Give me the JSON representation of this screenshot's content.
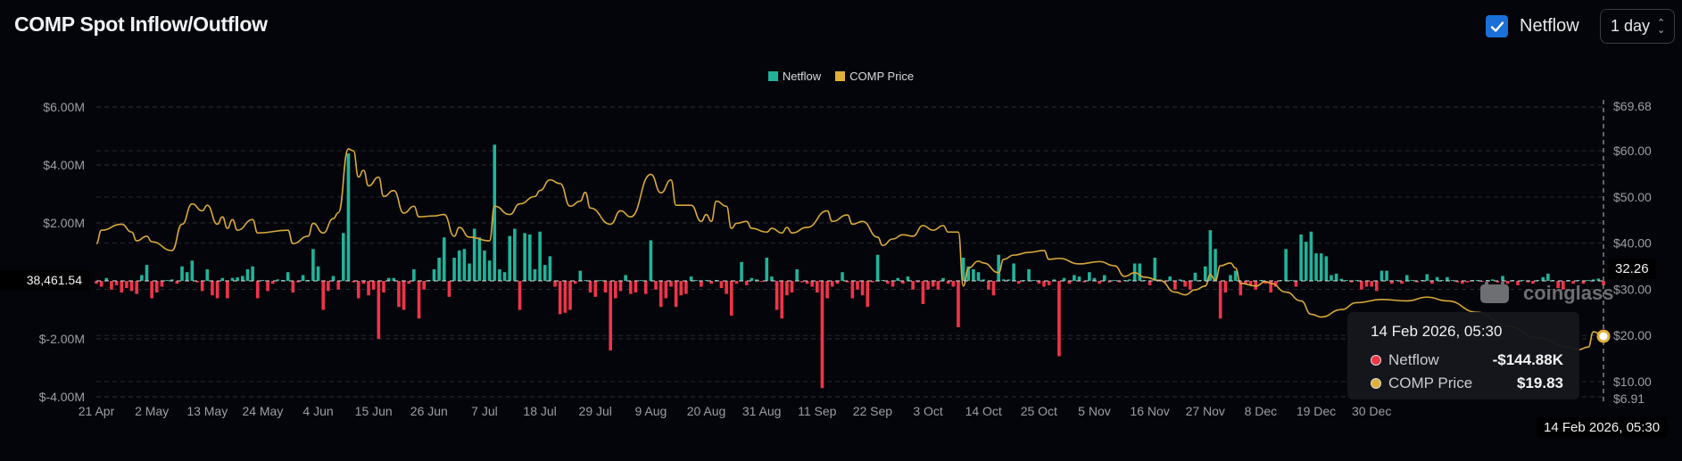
{
  "header": {
    "title": "COMP Spot Inflow/Outflow",
    "netflow_toggle": {
      "label": "Netflow",
      "checked": true
    },
    "interval_select": {
      "value": "1 day"
    }
  },
  "legend": [
    {
      "label": "Netflow",
      "color": "#20b39a"
    },
    {
      "label": "COMP Price",
      "color": "#e0b038"
    }
  ],
  "colors": {
    "inflow": "#20b39a",
    "outflow": "#f0344a",
    "price": "#d9a93a",
    "accent": "#1b6fd8"
  },
  "crosshair": {
    "left_value": "38,461.54",
    "right_value": "32.26",
    "date_label": "14 Feb 2026, 05:30"
  },
  "tooltip": {
    "date": "14 Feb 2026, 05:30",
    "rows": [
      {
        "name": "Netflow",
        "value": "-$144.88K",
        "dot": "#f0344a"
      },
      {
        "name": "COMP Price",
        "value": "$19.83",
        "dot": "#e0b038"
      }
    ]
  },
  "watermark": "coinglass",
  "chart_data": {
    "type": "bar+line",
    "title": "COMP Spot Inflow/Outflow",
    "interval": "1 day",
    "x_range": [
      "2025-04-21",
      "2026-02-14"
    ],
    "x_ticks": [
      {
        "label": "21 Apr",
        "date": "2025-04-21"
      },
      {
        "label": "2 May",
        "date": "2025-05-02"
      },
      {
        "label": "13 May",
        "date": "2025-05-13"
      },
      {
        "label": "24 May",
        "date": "2025-05-24"
      },
      {
        "label": "4 Jun",
        "date": "2025-06-04"
      },
      {
        "label": "15 Jun",
        "date": "2025-06-15"
      },
      {
        "label": "26 Jun",
        "date": "2025-06-26"
      },
      {
        "label": "7 Jul",
        "date": "2025-07-07"
      },
      {
        "label": "18 Jul",
        "date": "2025-07-18"
      },
      {
        "label": "29 Jul",
        "date": "2025-07-29"
      },
      {
        "label": "9 Aug",
        "date": "2025-08-09"
      },
      {
        "label": "20 Aug",
        "date": "2025-08-20"
      },
      {
        "label": "31 Aug",
        "date": "2025-08-31"
      },
      {
        "label": "11 Sep",
        "date": "2025-09-11"
      },
      {
        "label": "22 Sep",
        "date": "2025-09-22"
      },
      {
        "label": "3 Oct",
        "date": "2025-10-03"
      },
      {
        "label": "14 Oct",
        "date": "2025-10-14"
      },
      {
        "label": "25 Oct",
        "date": "2025-10-25"
      },
      {
        "label": "5 Nov",
        "date": "2025-11-05"
      },
      {
        "label": "16 Nov",
        "date": "2025-11-16"
      },
      {
        "label": "27 Nov",
        "date": "2025-11-27"
      },
      {
        "label": "8 Dec",
        "date": "2025-12-08"
      },
      {
        "label": "19 Dec",
        "date": "2025-12-19"
      },
      {
        "label": "30 Dec",
        "date": "2025-12-30"
      }
    ],
    "y_left": {
      "range": [
        -4,
        6
      ],
      "unit": "USD millions",
      "ticks": [
        {
          "v": 6,
          "label": "$6.00M"
        },
        {
          "v": 4,
          "label": "$4.00M"
        },
        {
          "v": 2,
          "label": "$2.00M"
        },
        {
          "v": -2,
          "label": "$-2.00M"
        },
        {
          "v": -4,
          "label": "$-4.00M"
        }
      ]
    },
    "y_right": {
      "range": [
        6.91,
        69.68
      ],
      "ticks": [
        {
          "v": 69.68,
          "label": "$69.68"
        },
        {
          "v": 60,
          "label": "$60.00"
        },
        {
          "v": 50,
          "label": "$50.00"
        },
        {
          "v": 40,
          "label": "$40.00"
        },
        {
          "v": 30,
          "label": "$30.00"
        },
        {
          "v": 20,
          "label": "$20.00"
        },
        {
          "v": 10,
          "label": "$10.00"
        },
        {
          "v": 6.91,
          "label": "$6.91"
        }
      ]
    },
    "grid": true,
    "legend_position": "top-center",
    "series": [
      {
        "name": "Netflow",
        "type": "bar",
        "unit": "USD millions",
        "values": [
          -0.1,
          -0.2,
          0.1,
          -0.3,
          -0.15,
          -0.4,
          -0.25,
          -0.35,
          -0.45,
          0.2,
          0.55,
          -0.6,
          -0.4,
          -0.2,
          0.03,
          0.05,
          -0.1,
          0.5,
          0.3,
          0.7,
          -0.05,
          -0.35,
          0.4,
          -0.5,
          -0.6,
          0.1,
          -0.6,
          0.1,
          0.12,
          0.17,
          0.4,
          0.5,
          -0.6,
          0,
          -0.35,
          -0.1,
          0.05,
          0,
          0.3,
          -0.4,
          -0.05,
          0.2,
          0.02,
          1.1,
          0.5,
          -1.0,
          -0.35,
          0.17,
          -0.3,
          1.65,
          4.4,
          -0.05,
          -0.6,
          -0.1,
          -0.5,
          -0.3,
          -2.0,
          -0.4,
          0.1,
          0.1,
          -0.9,
          -1.0,
          -0.1,
          0.4,
          -1.3,
          -0.3,
          0,
          0.4,
          0.8,
          1.5,
          -0.55,
          0.8,
          1.05,
          1.1,
          0.6,
          1.8,
          1.5,
          1.05,
          0.7,
          4.7,
          0.4,
          0.3,
          1.55,
          1.8,
          -1.0,
          1.65,
          1.6,
          0.4,
          1.7,
          0.55,
          0.85,
          -0.2,
          -1.15,
          -1.1,
          -1.0,
          -0.1,
          0.35,
          0,
          -0.4,
          -0.55,
          0.03,
          -0.4,
          -2.4,
          -0.6,
          -0.35,
          0.2,
          -0.45,
          -0.4,
          0,
          -0.45,
          1.4,
          -0.3,
          -0.9,
          -0.6,
          -0.2,
          -0.9,
          -0.5,
          -0.45,
          0.15,
          0.02,
          -0.2,
          0,
          -0.1,
          0.02,
          -0.25,
          -0.45,
          -1.2,
          -0.1,
          0.65,
          -0.15,
          0.1,
          0.05,
          -0.03,
          0.8,
          0.15,
          -1.0,
          -1.3,
          -0.5,
          -0.4,
          0.4,
          -0.05,
          -0.1,
          -0.2,
          -0.4,
          -3.7,
          -0.6,
          -0.2,
          -0.1,
          0.3,
          -0.05,
          -0.6,
          -0.3,
          -0.5,
          -0.9,
          -0.05,
          0.9,
          0.03,
          -0.1,
          -0.2,
          0.1,
          -0.1,
          0.15,
          -0.3,
          -0.05,
          -0.8,
          -0.3,
          -0.2,
          -0.3,
          0.1,
          -0.1,
          -0.2,
          -1.6,
          0.8,
          0.5,
          0.4,
          0.3,
          0.05,
          -0.3,
          -0.5,
          0.9,
          0.05,
          0.05,
          0.6,
          -0.1,
          0.03,
          0.4,
          0.02,
          -0.1,
          -0.2,
          -0.15,
          0.05,
          -2.6,
          0.1,
          -0.1,
          0.2,
          0.15,
          -0.05,
          0.3,
          0.1,
          -0.1,
          0.2,
          -0.05,
          0.03,
          -0.05,
          0.03,
          0.05,
          0.6,
          0.6,
          0.02,
          -0.15,
          0.8,
          0.05,
          -0.05,
          0.15,
          -0.3,
          0.05,
          -0.2,
          -0.3,
          0.28,
          0.02,
          0.5,
          1.75,
          1.1,
          -1.3,
          -0.4,
          0.2,
          0.35,
          -0.5,
          -0.1,
          -0.15,
          -0.3,
          0.02,
          -0.1,
          -0.4,
          -0.2,
          0.03,
          1.1,
          0.02,
          -0.2,
          1.6,
          1.35,
          1.7,
          0.95,
          0.95,
          0.85,
          0.2,
          0.25,
          0.07,
          0.02,
          -0.05,
          0.02,
          -0.3,
          -0.2,
          -0.2,
          -0.35,
          0.35,
          0.35,
          -0.1,
          0.02,
          -0.1,
          0.2,
          0.02,
          -0.05,
          0.02,
          0.23,
          -0.1,
          0.13,
          0.02,
          0.13,
          0.02,
          -0.05,
          -0.1,
          -0.05,
          0.02,
          0.03,
          -0.03,
          0.02,
          0.05,
          -0.05,
          0.17,
          -0.1,
          0.02,
          -0.15,
          0.03,
          -0.05,
          -0.1,
          0.02,
          0.13,
          0.25,
          0.02,
          -0.25,
          -0.3,
          0.02,
          -0.1,
          0.03,
          -0.1,
          0.02,
          0.05,
          0.08,
          -0.14488
        ]
      },
      {
        "name": "COMP Price",
        "type": "line",
        "unit": "USD",
        "points": [
          [
            "2025-04-21",
            39.9
          ],
          [
            "2025-04-22",
            42.8
          ],
          [
            "2025-04-26",
            44.1
          ],
          [
            "2025-04-28",
            42.4
          ],
          [
            "2025-04-29",
            40.5
          ],
          [
            "2025-05-01",
            41.5
          ],
          [
            "2025-05-02",
            40.3
          ],
          [
            "2025-05-06",
            38.4
          ],
          [
            "2025-05-08",
            44.1
          ],
          [
            "2025-05-10",
            48.5
          ],
          [
            "2025-05-12",
            47.0
          ],
          [
            "2025-05-13",
            48.2
          ],
          [
            "2025-05-15",
            44.1
          ],
          [
            "2025-05-16",
            45.7
          ],
          [
            "2025-05-17",
            43.2
          ],
          [
            "2025-05-18",
            45.1
          ],
          [
            "2025-05-19",
            42.8
          ],
          [
            "2025-05-22",
            45.1
          ],
          [
            "2025-05-23",
            42.2
          ],
          [
            "2025-05-29",
            42.8
          ],
          [
            "2025-05-30",
            39.9
          ],
          [
            "2025-06-02",
            41.5
          ],
          [
            "2025-06-03",
            44.3
          ],
          [
            "2025-06-05",
            42.2
          ],
          [
            "2025-06-07",
            45.3
          ],
          [
            "2025-06-08",
            46.6
          ],
          [
            "2025-06-10",
            60.4
          ],
          [
            "2025-06-11",
            60.0
          ],
          [
            "2025-06-12",
            54.3
          ],
          [
            "2025-06-13",
            55.8
          ],
          [
            "2025-06-14",
            52.4
          ],
          [
            "2025-06-16",
            54.3
          ],
          [
            "2025-06-17",
            50.1
          ],
          [
            "2025-06-19",
            51.4
          ],
          [
            "2025-06-21",
            46.5
          ],
          [
            "2025-06-23",
            48.0
          ],
          [
            "2025-06-24",
            45.7
          ],
          [
            "2025-06-27",
            45.9
          ],
          [
            "2025-06-29",
            46.2
          ],
          [
            "2025-07-01",
            41.5
          ],
          [
            "2025-07-02",
            43.4
          ],
          [
            "2025-07-04",
            41.3
          ],
          [
            "2025-07-08",
            40.5
          ],
          [
            "2025-07-09",
            48.0
          ],
          [
            "2025-07-12",
            46.2
          ],
          [
            "2025-07-14",
            48.5
          ],
          [
            "2025-07-17",
            50.1
          ],
          [
            "2025-07-18",
            51.4
          ],
          [
            "2025-07-20",
            53.7
          ],
          [
            "2025-07-22",
            52.9
          ],
          [
            "2025-07-24",
            48.0
          ],
          [
            "2025-07-26",
            49.1
          ],
          [
            "2025-07-27",
            51.0
          ],
          [
            "2025-07-28",
            47.6
          ],
          [
            "2025-08-01",
            44.1
          ],
          [
            "2025-08-03",
            47.0
          ],
          [
            "2025-08-05",
            45.7
          ],
          [
            "2025-08-09",
            54.9
          ],
          [
            "2025-08-11",
            50.9
          ],
          [
            "2025-08-13",
            53.7
          ],
          [
            "2025-08-14",
            48.2
          ],
          [
            "2025-08-17",
            48.2
          ],
          [
            "2025-08-19",
            44.7
          ],
          [
            "2025-08-20",
            46.2
          ],
          [
            "2025-08-21",
            44.7
          ],
          [
            "2025-08-22",
            49.1
          ],
          [
            "2025-08-24",
            48.0
          ],
          [
            "2025-08-25",
            43.2
          ],
          [
            "2025-08-26",
            44.3
          ],
          [
            "2025-08-28",
            44.7
          ],
          [
            "2025-08-29",
            43.2
          ],
          [
            "2025-09-01",
            42.4
          ],
          [
            "2025-09-02",
            43.2
          ],
          [
            "2025-09-04",
            42.2
          ],
          [
            "2025-09-05",
            43.4
          ],
          [
            "2025-09-06",
            42.2
          ],
          [
            "2025-09-09",
            43.4
          ],
          [
            "2025-09-13",
            47.0
          ],
          [
            "2025-09-14",
            44.7
          ],
          [
            "2025-09-17",
            46.1
          ],
          [
            "2025-09-18",
            44.1
          ],
          [
            "2025-09-20",
            44.7
          ],
          [
            "2025-09-23",
            41.3
          ],
          [
            "2025-09-24",
            39.5
          ],
          [
            "2025-09-26",
            40.9
          ],
          [
            "2025-09-28",
            41.8
          ],
          [
            "2025-09-30",
            41.5
          ],
          [
            "2025-10-02",
            43.8
          ],
          [
            "2025-10-04",
            42.8
          ],
          [
            "2025-10-06",
            43.8
          ],
          [
            "2025-10-07",
            42.4
          ],
          [
            "2025-10-09",
            42.4
          ],
          [
            "2025-10-10",
            30.7
          ],
          [
            "2025-10-11",
            34.6
          ],
          [
            "2025-10-13",
            36.1
          ],
          [
            "2025-10-14",
            35.7
          ],
          [
            "2025-10-17",
            33.6
          ],
          [
            "2025-10-18",
            36.5
          ],
          [
            "2025-10-20",
            37.4
          ],
          [
            "2025-10-23",
            38.0
          ],
          [
            "2025-10-26",
            38.4
          ],
          [
            "2025-10-27",
            36.5
          ],
          [
            "2025-10-29",
            36.7
          ],
          [
            "2025-11-02",
            35.5
          ],
          [
            "2025-11-06",
            36.0
          ],
          [
            "2025-11-09",
            35.1
          ],
          [
            "2025-11-11",
            32.8
          ],
          [
            "2025-11-13",
            33.6
          ],
          [
            "2025-11-15",
            32.6
          ],
          [
            "2025-11-18",
            31.9
          ],
          [
            "2025-11-21",
            29.4
          ],
          [
            "2025-11-23",
            28.8
          ],
          [
            "2025-11-25",
            29.9
          ],
          [
            "2025-11-27",
            30.7
          ],
          [
            "2025-11-28",
            33.2
          ],
          [
            "2025-11-29",
            31.9
          ],
          [
            "2025-11-30",
            35.1
          ],
          [
            "2025-12-02",
            35.7
          ],
          [
            "2025-12-03",
            34.6
          ],
          [
            "2025-12-04",
            31.3
          ],
          [
            "2025-12-07",
            30.7
          ],
          [
            "2025-12-09",
            31.7
          ],
          [
            "2025-12-10",
            31.3
          ],
          [
            "2025-12-13",
            29.4
          ],
          [
            "2025-12-16",
            27.5
          ],
          [
            "2025-12-18",
            24.6
          ],
          [
            "2025-12-20",
            24.0
          ],
          [
            "2025-12-24",
            25.6
          ],
          [
            "2025-12-27",
            27.1
          ],
          [
            "2026-01-01",
            27.8
          ],
          [
            "2026-01-06",
            27.5
          ],
          [
            "2026-01-10",
            28.3
          ],
          [
            "2026-01-14",
            27.5
          ],
          [
            "2026-01-20",
            25.0
          ],
          [
            "2026-01-26",
            22.0
          ],
          [
            "2026-02-01",
            19.5
          ],
          [
            "2026-02-07",
            17.5
          ],
          [
            "2026-02-09",
            16.9
          ],
          [
            "2026-02-11",
            17.5
          ],
          [
            "2026-02-12",
            20.8
          ],
          [
            "2026-02-14",
            19.83
          ]
        ]
      }
    ]
  }
}
